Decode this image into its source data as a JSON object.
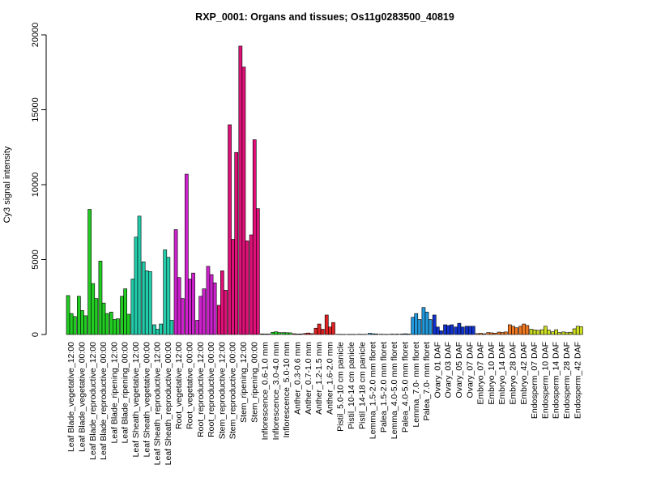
{
  "chart_data": {
    "type": "bar",
    "title": "RXP_0001: Organs and tissues; Os11g0283500_40819",
    "xlabel": "",
    "ylabel": "Cy3 signal intensity",
    "ylim": [
      0,
      20000
    ],
    "yticks": [
      0,
      5000,
      10000,
      15000,
      20000
    ],
    "grid": false,
    "legend": "none",
    "x_tick_labels": [
      "Leaf Blade_vegetative_12:00",
      "Leaf Blade_vegetative_00:00",
      "Leaf Blade_reproductive_12:00",
      "Leaf Blade_reproductive_00:00",
      "Leaf Blade_ripening_12:00",
      "Leaf Blade_ripening_00:00",
      "Leaf Sheath_vegetative_12:00",
      "Leaf Sheath_vegetative_00:00",
      "Leaf Sheath_reproductive_12:00",
      "Leaf Sheath_reproductive_00:00",
      "Root_vegetative_12:00",
      "Root_vegetative_00:00",
      "Root_reproductive_12:00",
      "Root_reproductive_00:00",
      "Stem_reproductive_12:00",
      "Stem_reproductive_00:00",
      "Stem_ripening_12:00",
      "Stem_ripening_00:00",
      "Inflorescence_0.6-1.0 mm",
      "Inflorescence_3.0-4.0 mm",
      "Inflorescence_5.0-10 mm",
      "Anther_0.3-0.6 mm",
      "Anther_0.7-1.0 mm",
      "Anther_1.2-1.5 mm",
      "Anther_1.6-2.0 mm",
      "Pistil_5.0-10 cm panicle",
      "Pistil_10-14 cm panicle",
      "Pistil_14-18 cm panicle",
      "Lemma_1.5-2.0 mm floret",
      "Palea_1.5-2.0 mm floret",
      "Lemma_4.0-5.0 mm floret",
      "Palea_4.0-5.0 mm floret",
      "Lemma_7.0- mm floret",
      "Palea_7.0- mm floret",
      "Ovary_01 DAF",
      "Ovary_03 DAF",
      "Ovary_05 DAF",
      "Ovary_07 DAF",
      "Embryo_07 DAF",
      "Embryo_10 DAF",
      "Embryo_14 DAF",
      "Embryo_28 DAF",
      "Embryo_42 DAF",
      "Endosperm_07 DAF",
      "Endosperm_10 DAF",
      "Endosperm_14 DAF",
      "Endosperm_28 DAF",
      "Endosperm_42 DAF"
    ],
    "groups": [
      {
        "color": "#22cc22",
        "values": [
          2600,
          1400,
          1200
        ]
      },
      {
        "color": "#22cc22",
        "values": [
          2550,
          1600,
          1250
        ]
      },
      {
        "color": "#22cc22",
        "values": [
          8350,
          3400,
          2400
        ]
      },
      {
        "color": "#22cc22",
        "values": [
          4900,
          2100,
          1400
        ]
      },
      {
        "color": "#22cc22",
        "values": [
          1500,
          1000,
          1050
        ]
      },
      {
        "color": "#22cc22",
        "values": [
          2550,
          3050,
          1350
        ]
      },
      {
        "color": "#22ccaa",
        "values": [
          3700,
          6500,
          7900
        ]
      },
      {
        "color": "#22ccaa",
        "values": [
          4850,
          4250,
          4200
        ]
      },
      {
        "color": "#22ccaa",
        "values": [
          650,
          350,
          700
        ]
      },
      {
        "color": "#22ccaa",
        "values": [
          5650,
          5150,
          950
        ]
      },
      {
        "color": "#cc22cc",
        "values": [
          7000,
          3800,
          2400
        ]
      },
      {
        "color": "#cc22cc",
        "values": [
          10700,
          3700,
          4100
        ]
      },
      {
        "color": "#cc22cc",
        "values": [
          950,
          2550,
          3050
        ]
      },
      {
        "color": "#cc22cc",
        "values": [
          4550,
          4000,
          3450
        ]
      },
      {
        "color": "#dd1177",
        "values": [
          1950,
          4250,
          2950
        ]
      },
      {
        "color": "#dd1177",
        "values": [
          14000,
          6350,
          12150
        ]
      },
      {
        "color": "#dd1177",
        "values": [
          19250,
          17850,
          6250
        ]
      },
      {
        "color": "#dd1177",
        "values": [
          6650,
          13000,
          8400
        ]
      },
      {
        "color": "#22cc22",
        "values": [
          40,
          30,
          30
        ]
      },
      {
        "color": "#22cc22",
        "values": [
          150,
          180,
          130
        ]
      },
      {
        "color": "#22cc22",
        "values": [
          130,
          120,
          110
        ]
      },
      {
        "color": "#dd2222",
        "values": [
          50,
          30,
          40
        ]
      },
      {
        "color": "#dd2222",
        "values": [
          70,
          100,
          60
        ]
      },
      {
        "color": "#dd2222",
        "values": [
          420,
          700,
          350
        ]
      },
      {
        "color": "#dd2222",
        "values": [
          1300,
          500,
          800
        ]
      },
      {
        "color": "#2299dd",
        "values": [
          15,
          10,
          10
        ]
      },
      {
        "color": "#2299dd",
        "values": [
          10,
          10,
          10
        ]
      },
      {
        "color": "#2299dd",
        "values": [
          20,
          10,
          15
        ]
      },
      {
        "color": "#2299dd",
        "values": [
          80,
          50,
          40
        ]
      },
      {
        "color": "#2299dd",
        "values": [
          20,
          15,
          10
        ]
      },
      {
        "color": "#2299dd",
        "values": [
          25,
          20,
          25
        ]
      },
      {
        "color": "#2299dd",
        "values": [
          30,
          50,
          30
        ]
      },
      {
        "color": "#2299dd",
        "values": [
          1150,
          1400,
          1000
        ]
      },
      {
        "color": "#2299dd",
        "values": [
          1800,
          1500,
          1000
        ]
      },
      {
        "color": "#1133cc",
        "values": [
          1300,
          500,
          250
        ]
      },
      {
        "color": "#1133cc",
        "values": [
          650,
          600,
          650
        ]
      },
      {
        "color": "#1133cc",
        "values": [
          500,
          750,
          500
        ]
      },
      {
        "color": "#1133cc",
        "values": [
          550,
          550,
          550
        ]
      },
      {
        "color": "#ee7722",
        "values": [
          60,
          80,
          50
        ]
      },
      {
        "color": "#ee7722",
        "values": [
          130,
          110,
          90
        ]
      },
      {
        "color": "#ee7722",
        "values": [
          160,
          130,
          170
        ]
      },
      {
        "color": "#ee7722",
        "values": [
          650,
          550,
          450
        ]
      },
      {
        "color": "#ee7722",
        "values": [
          550,
          700,
          600
        ]
      },
      {
        "color": "#ccdd22",
        "values": [
          350,
          300,
          280
        ]
      },
      {
        "color": "#ccdd22",
        "values": [
          320,
          550,
          300
        ]
      },
      {
        "color": "#ccdd22",
        "values": [
          180,
          320,
          130
        ]
      },
      {
        "color": "#ccdd22",
        "values": [
          170,
          120,
          150
        ]
      },
      {
        "color": "#ccdd22",
        "values": [
          380,
          550,
          520
        ]
      }
    ]
  }
}
